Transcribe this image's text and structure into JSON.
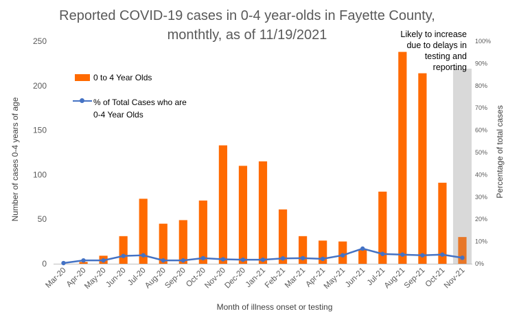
{
  "chart_data": {
    "type": "bar",
    "title_line1": "Reported COVID-19 cases in 0-4 year-olds in Fayette County,",
    "title_line2": "monthtly, as of 11/19/2021",
    "xlabel": "Month of illness onset or testing",
    "ylabel": "Number of cases 0-4 years of age",
    "y2label": "Percentage of total cases",
    "categories": [
      "Mar-20",
      "Apr-20",
      "May-20",
      "Jun-20",
      "Jul-20",
      "Aug-20",
      "Sep-20",
      "Oct-20",
      "Nov-20",
      "Dec-20",
      "Jan-21",
      "Feb-21",
      "Mar-21",
      "Apr-21",
      "May-21",
      "Jun-21",
      "Jul-21",
      "Aug-21",
      "Sep-21",
      "Oct-21",
      "Nov-21"
    ],
    "ylim": [
      0,
      250
    ],
    "yticks": [
      0,
      50,
      100,
      150,
      200,
      250
    ],
    "y2lim": [
      0,
      100
    ],
    "y2ticks": [
      "0%",
      "10%",
      "20%",
      "30%",
      "40%",
      "50%",
      "60%",
      "70%",
      "80%",
      "90%",
      "100%"
    ],
    "series": [
      {
        "name": "0 to 4 Year Olds",
        "type": "bar",
        "color": "#FF6A00",
        "last_bar_color": "#E87728",
        "values": [
          0,
          2,
          9,
          31,
          73,
          45,
          49,
          71,
          133,
          110,
          115,
          61,
          31,
          26,
          25,
          16,
          81,
          238,
          214,
          91,
          30
        ]
      },
      {
        "name": "% of Total Cases who are 0-4 Year Olds",
        "name_line1": "% of Total Cases who are",
        "name_line2": "0-4 Year Olds",
        "type": "line",
        "axis": "secondary",
        "color": "#4472C4",
        "values": [
          0.3,
          1.5,
          1.5,
          3.5,
          3.8,
          1.5,
          1.5,
          2.5,
          2.0,
          1.8,
          1.8,
          2.4,
          2.5,
          2.2,
          3.8,
          6.8,
          4.4,
          4.1,
          3.8,
          4.1,
          2.7
        ]
      }
    ],
    "shaded_region": {
      "category": "Nov-21",
      "color": "#D9D9D9",
      "note_lines": [
        "Likely to increase",
        "due to delays in",
        "testing and",
        "reporting"
      ]
    },
    "legend_position": "top-left",
    "grid": false
  }
}
